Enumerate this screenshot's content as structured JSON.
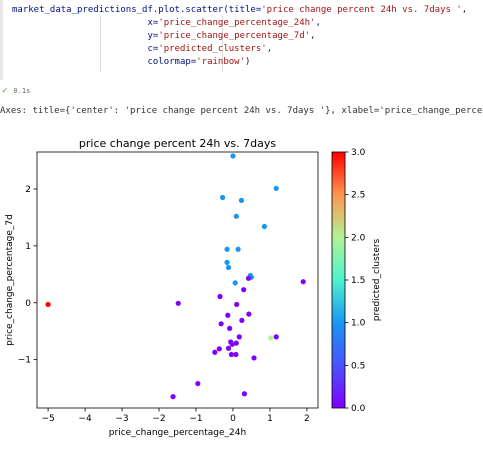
{
  "code_cell": {
    "lines": [
      {
        "segments": [
          {
            "t": "market_data_predictions_df.plot.scatter(",
            "c": "c-var"
          },
          {
            "t": "title=",
            "c": "c-kw"
          },
          {
            "t": "'price change percent 24h vs. 7days '",
            "c": "c-str"
          },
          {
            "t": ",",
            "c": ""
          }
        ]
      },
      {
        "segments": [
          {
            "t": "                         x=",
            "c": "c-kw"
          },
          {
            "t": "'price_change_percentage_24h'",
            "c": "c-str"
          },
          {
            "t": ",",
            "c": ""
          }
        ]
      },
      {
        "segments": [
          {
            "t": "                         y=",
            "c": "c-kw"
          },
          {
            "t": "'price_change_percentage_7d'",
            "c": "c-str"
          },
          {
            "t": ",",
            "c": ""
          }
        ]
      },
      {
        "segments": [
          {
            "t": "                         c=",
            "c": "c-kw"
          },
          {
            "t": "'predicted_clusters'",
            "c": "c-str"
          },
          {
            "t": ",",
            "c": ""
          }
        ]
      },
      {
        "segments": [
          {
            "t": "                         colormap=",
            "c": "c-kw"
          },
          {
            "t": "'rainbow'",
            "c": "c-str"
          },
          {
            "t": ")",
            "c": ""
          }
        ]
      }
    ]
  },
  "status": {
    "check": "✓",
    "time": "0.1s"
  },
  "output_text": "Axes: title={'center': 'price change percent 24h vs. 7days '}, xlabel='price_change_percent",
  "chart_data": {
    "type": "scatter",
    "title": "price change percent 24h vs. 7days",
    "xlabel": "price_change_percentage_24h",
    "ylabel": "price_change_percentage_7d",
    "colorbar_label": "predicted_clusters",
    "colormap": "rainbow",
    "xlim": [
      -5.3,
      2.3
    ],
    "ylim": [
      -1.85,
      2.65
    ],
    "clim": [
      0.0,
      3.0
    ],
    "xticks": [
      -5,
      -4,
      -3,
      -2,
      -1,
      0,
      1,
      2
    ],
    "yticks": [
      -1,
      0,
      1,
      2
    ],
    "cticks": [
      0.0,
      0.5,
      1.0,
      1.5,
      2.0,
      2.5,
      3.0
    ],
    "tick_labels": {
      "x": [
        "−5",
        "−4",
        "−3",
        "−2",
        "−1",
        "0",
        "1",
        "2"
      ],
      "y": [
        "−1",
        "0",
        "1",
        "2"
      ],
      "c": [
        "0.0",
        "0.5",
        "1.0",
        "1.5",
        "2.0",
        "2.5",
        "3.0"
      ]
    },
    "points": [
      {
        "x": -5.0,
        "y": -0.03,
        "c": 3
      },
      {
        "x": 0.0,
        "y": 2.58,
        "c": 1
      },
      {
        "x": 1.17,
        "y": 2.01,
        "c": 1
      },
      {
        "x": -0.28,
        "y": 1.85,
        "c": 1
      },
      {
        "x": 0.23,
        "y": 1.8,
        "c": 1
      },
      {
        "x": 0.09,
        "y": 1.52,
        "c": 1
      },
      {
        "x": 0.85,
        "y": 1.34,
        "c": 1
      },
      {
        "x": -0.16,
        "y": 0.94,
        "c": 1
      },
      {
        "x": 0.14,
        "y": 0.94,
        "c": 1
      },
      {
        "x": -0.16,
        "y": 0.71,
        "c": 1
      },
      {
        "x": -0.12,
        "y": 0.62,
        "c": 1
      },
      {
        "x": 0.47,
        "y": 0.48,
        "c": 1
      },
      {
        "x": 0.5,
        "y": 0.45,
        "c": 1
      },
      {
        "x": 0.06,
        "y": 0.35,
        "c": 1
      },
      {
        "x": 1.02,
        "y": -0.62,
        "c": 2
      },
      {
        "x": -1.48,
        "y": -0.01,
        "c": 0
      },
      {
        "x": 1.9,
        "y": 0.37,
        "c": 0
      },
      {
        "x": 0.42,
        "y": 0.43,
        "c": 0
      },
      {
        "x": -0.35,
        "y": 0.11,
        "c": 0
      },
      {
        "x": 0.29,
        "y": 0.23,
        "c": 0
      },
      {
        "x": 0.1,
        "y": -0.03,
        "c": 0
      },
      {
        "x": -0.14,
        "y": -0.22,
        "c": 0
      },
      {
        "x": 0.43,
        "y": -0.2,
        "c": 0
      },
      {
        "x": -0.32,
        "y": -0.37,
        "c": 0
      },
      {
        "x": 0.24,
        "y": -0.31,
        "c": 0
      },
      {
        "x": -0.09,
        "y": -0.45,
        "c": 0
      },
      {
        "x": 0.17,
        "y": -0.6,
        "c": 0
      },
      {
        "x": 1.17,
        "y": -0.6,
        "c": 0
      },
      {
        "x": -0.06,
        "y": -0.69,
        "c": 0
      },
      {
        "x": 0.09,
        "y": -0.71,
        "c": 0
      },
      {
        "x": -0.02,
        "y": -0.73,
        "c": 0
      },
      {
        "x": -0.37,
        "y": -0.81,
        "c": 0
      },
      {
        "x": -0.12,
        "y": -0.8,
        "c": 0
      },
      {
        "x": -0.49,
        "y": -0.87,
        "c": 0
      },
      {
        "x": -0.04,
        "y": -0.91,
        "c": 0
      },
      {
        "x": 0.08,
        "y": -0.91,
        "c": 0
      },
      {
        "x": 0.57,
        "y": -0.97,
        "c": 0
      },
      {
        "x": -0.95,
        "y": -1.42,
        "c": 0
      },
      {
        "x": 0.31,
        "y": -1.6,
        "c": 0
      },
      {
        "x": -1.62,
        "y": -1.65,
        "c": 0
      }
    ]
  }
}
